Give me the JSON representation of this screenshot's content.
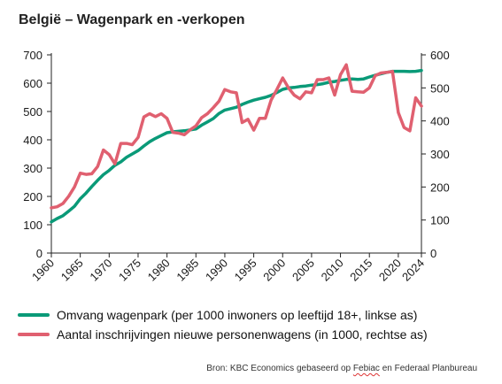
{
  "chart_data": {
    "type": "line",
    "title": "België – Wagenpark en -verkopen",
    "xlabel": "",
    "ylabel_left": "",
    "ylabel_right": "",
    "xlim": [
      1960,
      2024
    ],
    "ylim_left": [
      0,
      700
    ],
    "ylim_right": [
      0,
      600
    ],
    "y_ticks_left": [
      "0",
      "100",
      "200",
      "300",
      "400",
      "500",
      "600",
      "700"
    ],
    "y_ticks_right": [
      "0",
      "100",
      "200",
      "300",
      "400",
      "500",
      "600"
    ],
    "x_ticks": [
      "1960",
      "1965",
      "1970",
      "1975",
      "1980",
      "1985",
      "1990",
      "1995",
      "2000",
      "2005",
      "2010",
      "2015",
      "2020",
      "2024"
    ],
    "grid": false,
    "legend_position": "bottom",
    "series": [
      {
        "name": "Omvang wagenpark (per 1000 inwoners op leeftijd 18+, linkse as)",
        "axis": "left",
        "color": "#0a9a78",
        "x": [
          1960,
          1961,
          1962,
          1963,
          1964,
          1965,
          1966,
          1967,
          1968,
          1969,
          1970,
          1971,
          1972,
          1973,
          1974,
          1975,
          1976,
          1977,
          1978,
          1979,
          1980,
          1981,
          1982,
          1983,
          1984,
          1985,
          1986,
          1987,
          1988,
          1989,
          1990,
          1991,
          1992,
          1993,
          1994,
          1995,
          1996,
          1997,
          1998,
          1999,
          2000,
          2001,
          2002,
          2003,
          2004,
          2005,
          2006,
          2007,
          2008,
          2009,
          2010,
          2011,
          2012,
          2013,
          2014,
          2015,
          2016,
          2017,
          2018,
          2019,
          2020,
          2021,
          2022,
          2023,
          2024
        ],
        "values": [
          110,
          122,
          132,
          148,
          165,
          192,
          212,
          235,
          257,
          277,
          292,
          310,
          322,
          338,
          350,
          362,
          378,
          393,
          405,
          415,
          425,
          428,
          430,
          432,
          435,
          438,
          452,
          463,
          475,
          493,
          505,
          510,
          515,
          525,
          533,
          540,
          545,
          550,
          557,
          567,
          578,
          583,
          585,
          588,
          590,
          593,
          595,
          598,
          603,
          606,
          610,
          613,
          615,
          613,
          615,
          622,
          628,
          633,
          638,
          642,
          642,
          642,
          641,
          642,
          645
        ]
      },
      {
        "name": "Aantal inschrijvingen nieuwe personenwagens (in 1000, rechtse as)",
        "axis": "right",
        "color": "#e06070",
        "x": [
          1960,
          1961,
          1962,
          1963,
          1964,
          1965,
          1966,
          1967,
          1968,
          1969,
          1970,
          1971,
          1972,
          1973,
          1974,
          1975,
          1976,
          1977,
          1978,
          1979,
          1980,
          1981,
          1982,
          1983,
          1984,
          1985,
          1986,
          1987,
          1988,
          1989,
          1990,
          1991,
          1992,
          1993,
          1994,
          1995,
          1996,
          1997,
          1998,
          1999,
          2000,
          2001,
          2002,
          2003,
          2004,
          2005,
          2006,
          2007,
          2008,
          2009,
          2010,
          2011,
          2012,
          2013,
          2014,
          2015,
          2016,
          2017,
          2018,
          2019,
          2020,
          2021,
          2022,
          2023,
          2024
        ],
        "values": [
          137,
          140,
          150,
          172,
          200,
          242,
          238,
          240,
          262,
          312,
          298,
          270,
          332,
          332,
          328,
          350,
          412,
          422,
          413,
          422,
          408,
          365,
          363,
          358,
          373,
          385,
          410,
          422,
          440,
          460,
          495,
          488,
          485,
          395,
          405,
          372,
          408,
          408,
          463,
          495,
          530,
          500,
          478,
          467,
          488,
          485,
          525,
          525,
          530,
          478,
          540,
          570,
          490,
          488,
          487,
          500,
          537,
          545,
          547,
          550,
          425,
          380,
          370,
          470,
          445
        ]
      }
    ]
  },
  "legend": {
    "items": [
      "Omvang wagenpark (per 1000 inwoners op leeftijd 18+, linkse as)",
      "Aantal inschrijvingen nieuwe personenwagens (in 1000, rechtse as)"
    ]
  },
  "source": {
    "prefix": "Bron: KBC Economics gebaseerd op ",
    "highlight": "Febiac",
    "suffix": " en Federaal Planbureau"
  }
}
